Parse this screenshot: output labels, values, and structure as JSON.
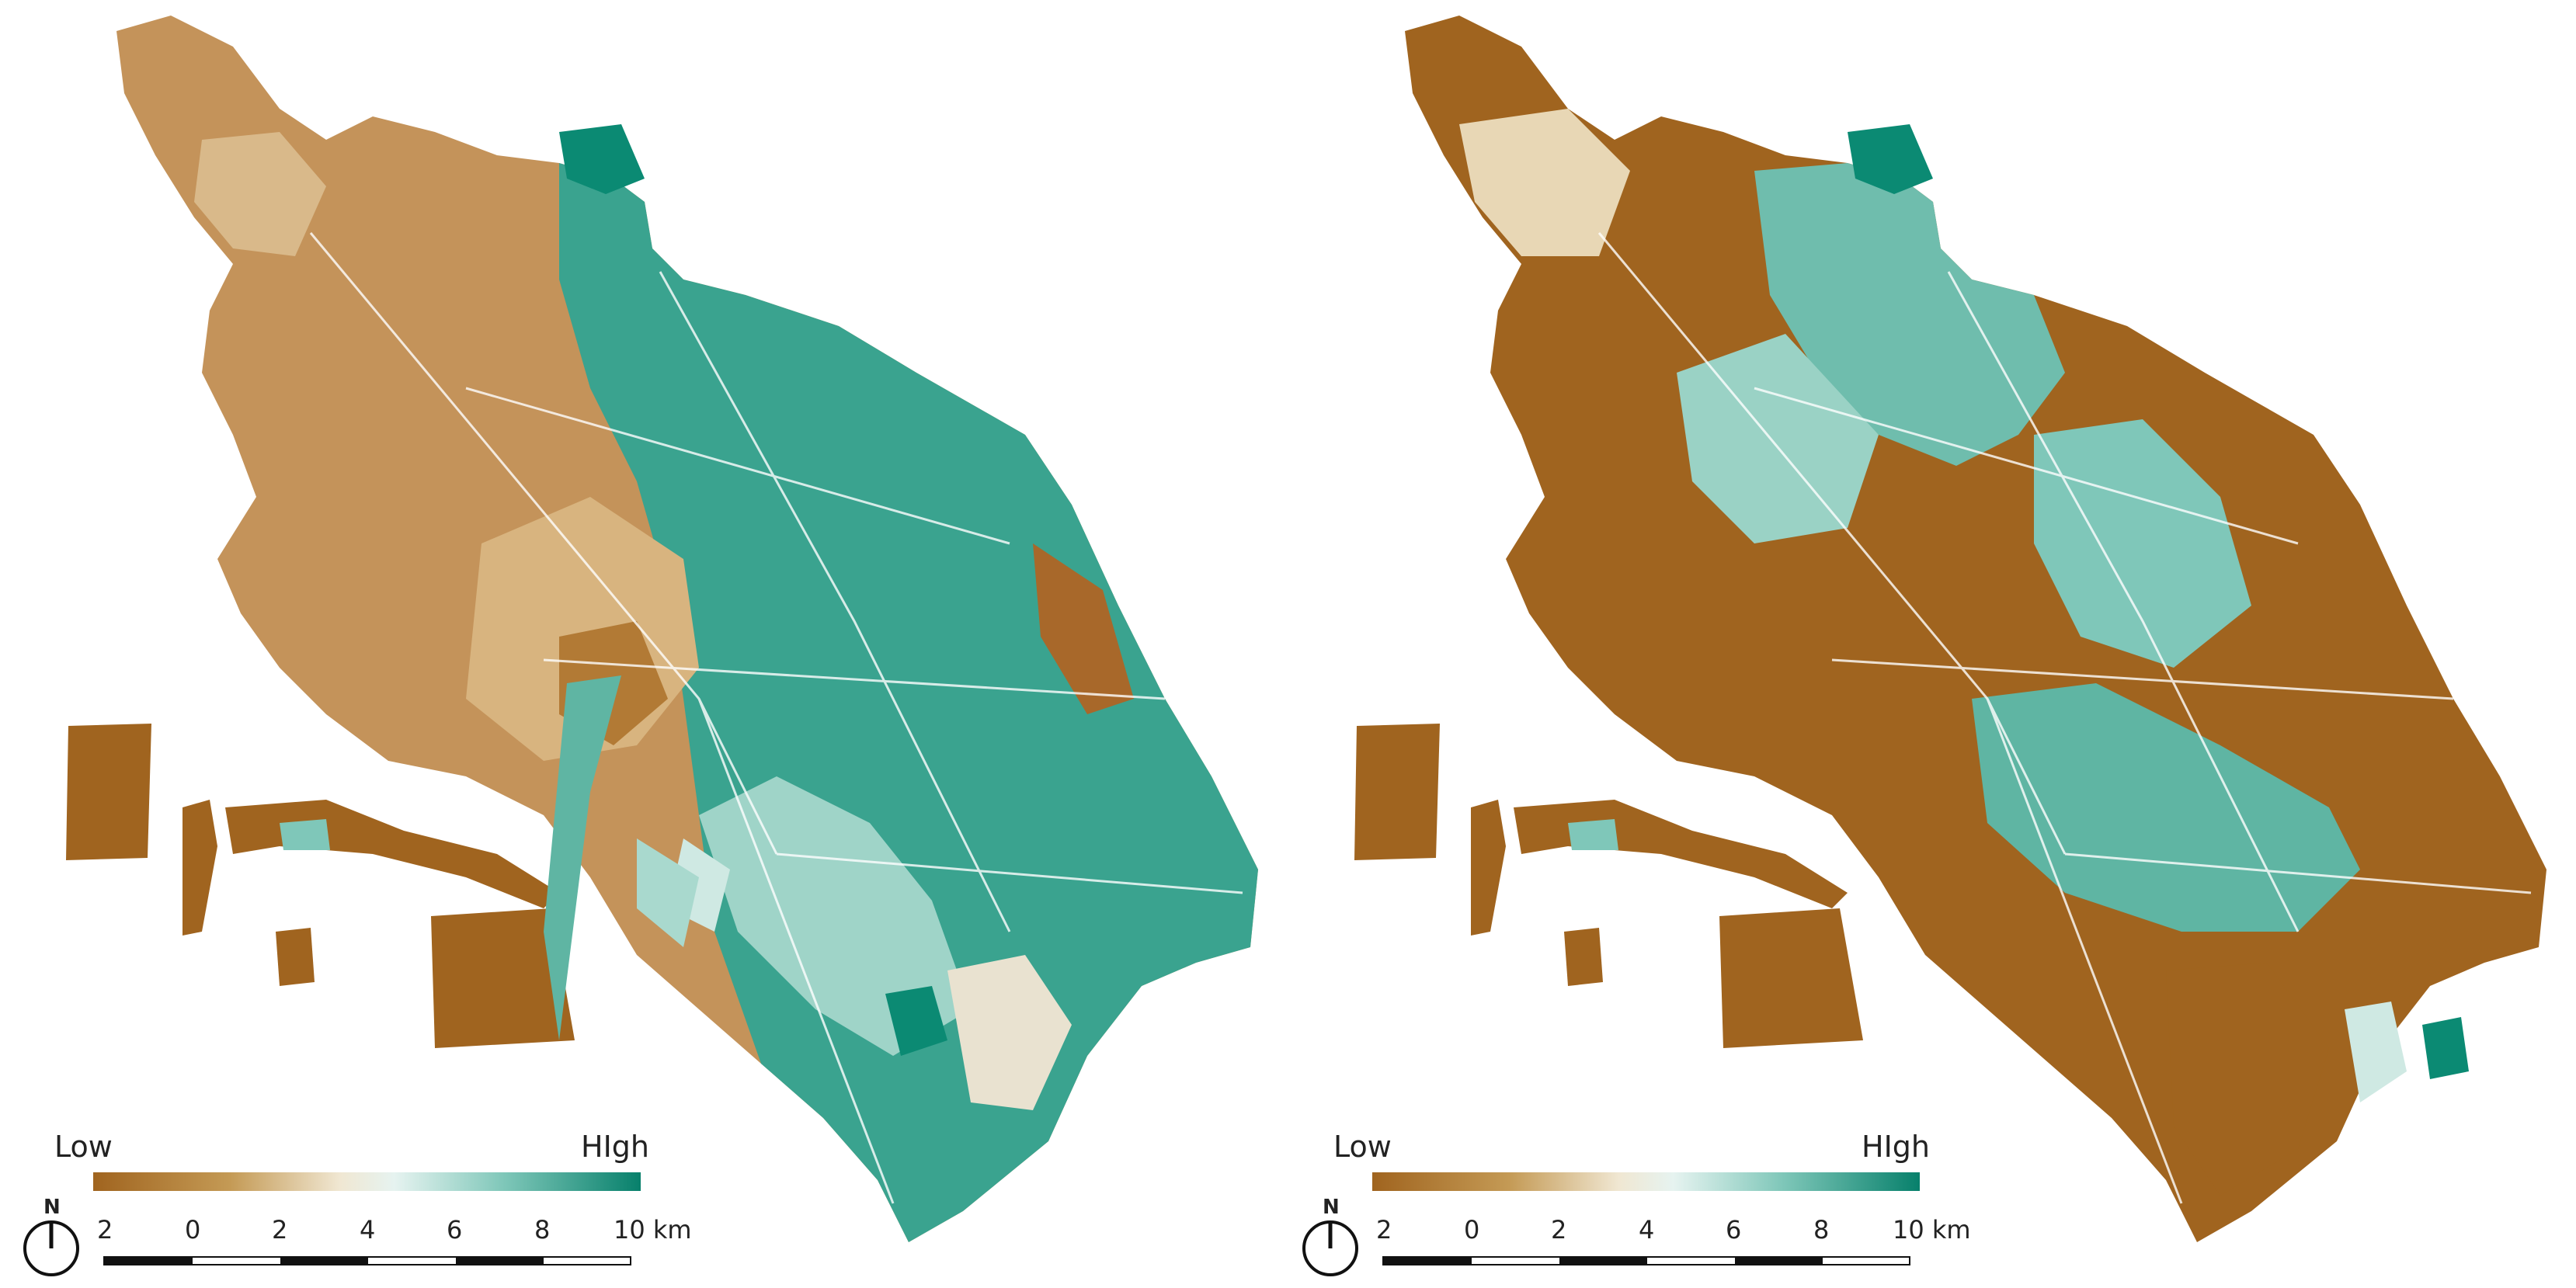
{
  "legend": {
    "low_label": "Low",
    "high_label": "HIgh",
    "scale_ticks": [
      "2",
      "0",
      "2",
      "4",
      "6",
      "8",
      "10 km"
    ],
    "north_label": "N"
  },
  "colors": {
    "low": "#a0641f",
    "mid": "#f3efe6",
    "high": "#07806b"
  },
  "panels": [
    {
      "id": "left",
      "style": "graduated"
    },
    {
      "id": "right",
      "style": "classified"
    }
  ]
}
